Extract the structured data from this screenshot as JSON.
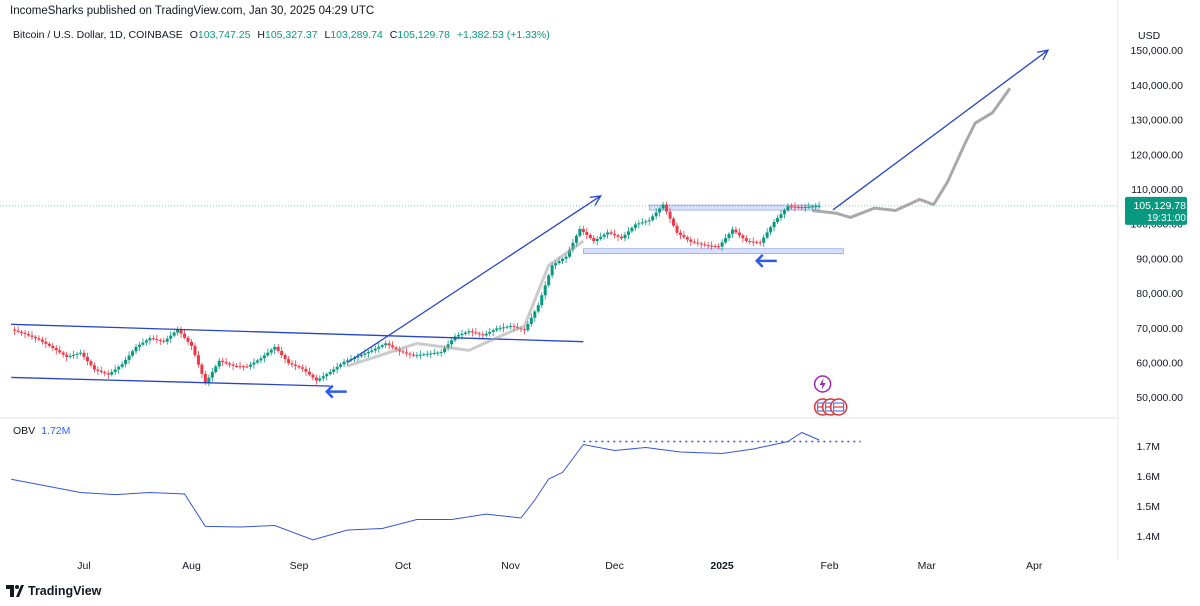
{
  "header": {
    "publisher": "IncomeSharks published on TradingView.com, Jan 30, 2025 04:29 UTC",
    "symbol": "Bitcoin / U.S. Dollar, 1D, COINBASE",
    "open_label": "O",
    "open": "103,747.25",
    "high_label": "H",
    "high": "105,327.37",
    "low_label": "L",
    "low": "103,289.74",
    "close_label": "C",
    "close": "105,129.78",
    "change": "+1,382.53 (+1.33%)"
  },
  "price_axis": {
    "currency": "USD",
    "current_price": "105,129.78",
    "countdown": "19:31:00"
  },
  "obv": {
    "label": "OBV",
    "value": "1.72M"
  },
  "footer": {
    "brand": "TradingView"
  },
  "colors": {
    "up": "#089981",
    "down": "#f23645",
    "drawing": "#2644c8",
    "obv": "#3656d6",
    "projection": "#a0a0a0",
    "zone": "#b9c8f5"
  },
  "chart_data": [
    {
      "type": "candlestick",
      "title": "Bitcoin / U.S. Dollar, 1D, COINBASE",
      "currency": "USD",
      "x_ticks": [
        "Jul",
        "Aug",
        "Sep",
        "Oct",
        "Nov",
        "Dec",
        "2025",
        "Feb",
        "Mar",
        "Apr"
      ],
      "y_ticks": [
        "50,000.00",
        "60,000.00",
        "70,000.00",
        "80,000.00",
        "90,000.00",
        "100,000.00",
        "110,000.00",
        "120,000.00",
        "130,000.00",
        "140,000.00",
        "150,000.00"
      ],
      "ylim": [
        46000,
        153000
      ],
      "last_close": 105129.78,
      "annotations": {
        "descending_channel": [
          {
            "from": [
              "2024-06-10",
              71000
            ],
            "to": [
              "2024-11-22",
              66000
            ]
          },
          {
            "from": [
              "2024-06-10",
              55700
            ],
            "to": [
              "2024-09-10",
              53200
            ]
          }
        ],
        "consolidation_zone": {
          "top": 104500,
          "bottom": 92200
        },
        "up_arrows": [
          {
            "from": [
              "2024-09-15",
              60000
            ],
            "to": [
              "2024-11-27",
              108000
            ]
          },
          {
            "from": [
              "2025-02-02",
              104000
            ],
            "to": [
              "2025-04-05",
              150000
            ]
          }
        ]
      },
      "series": [
        {
          "name": "BTCUSD",
          "x": [
            "2024-06-10",
            "2024-06-14",
            "2024-06-18",
            "2024-06-22",
            "2024-06-26",
            "2024-06-30",
            "2024-07-04",
            "2024-07-08",
            "2024-07-12",
            "2024-07-16",
            "2024-07-20",
            "2024-07-24",
            "2024-07-28",
            "2024-08-01",
            "2024-08-05",
            "2024-08-09",
            "2024-08-13",
            "2024-08-17",
            "2024-08-21",
            "2024-08-25",
            "2024-08-29",
            "2024-09-02",
            "2024-09-06",
            "2024-09-10",
            "2024-09-14",
            "2024-09-18",
            "2024-09-22",
            "2024-09-26",
            "2024-09-30",
            "2024-10-04",
            "2024-10-08",
            "2024-10-12",
            "2024-10-16",
            "2024-10-20",
            "2024-10-24",
            "2024-10-28",
            "2024-11-01",
            "2024-11-05",
            "2024-11-09",
            "2024-11-13",
            "2024-11-17",
            "2024-11-21",
            "2024-11-25",
            "2024-11-29",
            "2024-12-03",
            "2024-12-07",
            "2024-12-11",
            "2024-12-15",
            "2024-12-19",
            "2024-12-23",
            "2024-12-27",
            "2024-12-31",
            "2025-01-04",
            "2025-01-08",
            "2025-01-12",
            "2025-01-16",
            "2025-01-20",
            "2025-01-24",
            "2025-01-29"
          ],
          "values": [
            69500,
            68200,
            66600,
            64200,
            61600,
            62800,
            58000,
            56500,
            59500,
            64500,
            67000,
            66000,
            69500,
            64800,
            54000,
            60500,
            59000,
            58800,
            61200,
            64500,
            59800,
            58200,
            54800,
            57300,
            60200,
            61800,
            63500,
            65500,
            63200,
            62000,
            62500,
            63000,
            67500,
            69000,
            67800,
            69800,
            70500,
            69300,
            76500,
            88000,
            90500,
            98500,
            95000,
            97500,
            95800,
            99800,
            101000,
            105500,
            97400,
            94800,
            93800,
            93400,
            98300,
            95000,
            94500,
            100500,
            105000,
            104700,
            105129.78
          ]
        },
        {
          "name": "OBV",
          "y_ticks": [
            "1.4M",
            "1.5M",
            "1.6M",
            "1.7M"
          ],
          "ylim": [
            1.355,
            1.765
          ],
          "x": [
            "2024-06-10",
            "2024-06-20",
            "2024-06-30",
            "2024-07-10",
            "2024-07-20",
            "2024-07-30",
            "2024-08-05",
            "2024-08-15",
            "2024-08-25",
            "2024-09-05",
            "2024-09-15",
            "2024-09-25",
            "2024-10-05",
            "2024-10-15",
            "2024-10-25",
            "2024-11-04",
            "2024-11-08",
            "2024-11-12",
            "2024-11-16",
            "2024-11-22",
            "2024-12-01",
            "2024-12-10",
            "2024-12-20",
            "2025-01-01",
            "2025-01-10",
            "2025-01-20",
            "2025-01-24",
            "2025-01-29"
          ],
          "values": [
            1.589,
            1.567,
            1.545,
            1.538,
            1.545,
            1.54,
            1.432,
            1.43,
            1.435,
            1.387,
            1.42,
            1.425,
            1.455,
            1.455,
            1.473,
            1.46,
            1.52,
            1.59,
            1.612,
            1.705,
            1.685,
            1.695,
            1.68,
            1.675,
            1.69,
            1.715,
            1.745,
            1.72
          ],
          "reference_level": 1.715
        }
      ]
    }
  ]
}
